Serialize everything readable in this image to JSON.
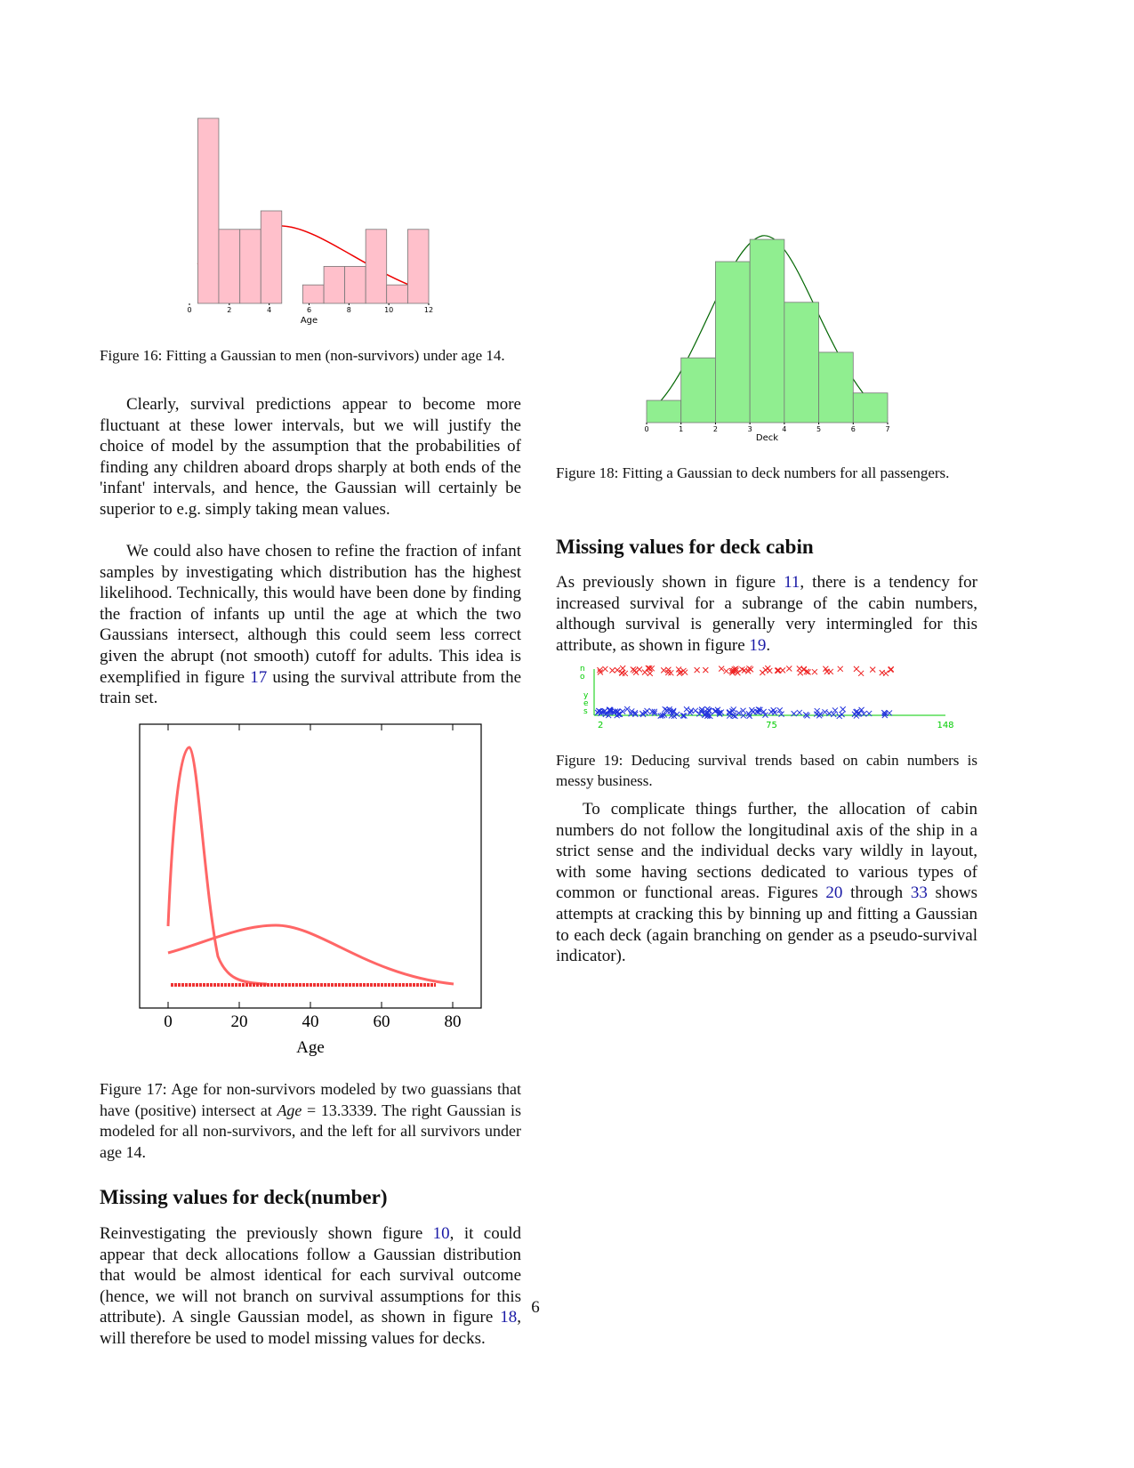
{
  "chart_data": [
    {
      "type": "histogram",
      "xlabel": "Age",
      "bins": [
        0.42,
        1.47,
        2.53,
        3.58,
        4.63,
        5.68,
        6.74,
        7.79,
        8.84,
        9.89,
        10.95,
        12
      ],
      "counts": [
        10,
        4,
        4,
        5,
        0,
        1,
        2,
        2,
        4,
        1,
        4
      ],
      "color": "#ffc0cb",
      "xlim": [
        0,
        12
      ],
      "xticks": [
        0,
        2,
        4,
        6,
        8,
        10,
        12
      ]
    },
    {
      "type": "histogram",
      "xlabel": "Deck",
      "bins": [
        0,
        1,
        2,
        3,
        4,
        5,
        6,
        7
      ],
      "counts": [
        12,
        35,
        87,
        99,
        65,
        38,
        16
      ],
      "color": "#90ee90",
      "xlim": [
        0,
        7
      ],
      "xticks": [
        0,
        1,
        2,
        3,
        4,
        5,
        6,
        7
      ]
    },
    {
      "type": "curves",
      "xlabel": "Age",
      "xlim": [
        -8,
        88
      ],
      "xticks": [
        0,
        20,
        40,
        60,
        80
      ]
    },
    {
      "type": "scatter",
      "xlim": [
        2,
        148
      ],
      "xticks": [
        2,
        75,
        148
      ],
      "ycategories": [
        "no",
        "yes"
      ]
    }
  ],
  "caption16": "Figure 16: Fitting a Gaussian to men (non-survivors) under age 14.",
  "para1": "Clearly, survival predictions appear to become more fluctuant at these lower intervals, but we will justify the choice of model by the assumption that the probabilities of finding any children aboard drops sharply at both ends of the 'infant' intervals, and hence, the Gaussian will certainly be superior to e.g. simply taking mean values.",
  "para2": [
    "We could also have chosen to refine the fraction of infant samples by investigating which distribution has the highest likelihood. Technically, this would have been done by finding the fraction of infants up until the age at which the two Gaussians intersect, although this could seem less correct given the abrupt (not smooth) cutoff for adults. This idea is exemplified in figure ",
    "17",
    " using the survival attribute from the train set."
  ],
  "caption17": [
    "Figure 17: Age for non-survivors modeled by two guassians that have (positive) intersect at ",
    "Age",
    " = 13.3339. The right Gaussian is modeled for all non-survivors, and the left for all survivors under age 14."
  ],
  "heading1": "Missing values for deck(number)",
  "para3": [
    "Reinvestigating the previously shown figure ",
    "10",
    ", it could appear that deck allocations follow a Gaussian distribution that would be almost identical for each survival outcome (hence, we will not branch on survival assumptions for this attribute). A single Gaussian model, as shown in figure ",
    "18",
    ", will therefore be used to model missing values for decks."
  ],
  "caption18": "Figure 18: Fitting a Gaussian to deck numbers for all passengers.",
  "heading2": "Missing values for deck cabin",
  "para4": [
    "As previously shown in figure ",
    "11",
    ", there is a tendency for increased survival for a subrange of the cabin numbers, although survival is generally very intermingled for this attribute, as shown in figure ",
    "19",
    "."
  ],
  "caption19": "Figure 19: Deducing survival trends based on cabin numbers is messy business.",
  "para5": [
    "To complicate things further, the allocation of cabin numbers do not follow the longitudinal axis of the ship in a strict sense and the individual decks vary wildly in layout, with some having sections dedicated to various types of common or functional areas. Figures ",
    "20",
    " through ",
    "33",
    " shows attempts at cracking this by binning up and fitting a Gaussian to each deck (again branching on gender as a pseudo-survival indicator)."
  ],
  "page_number": "6"
}
